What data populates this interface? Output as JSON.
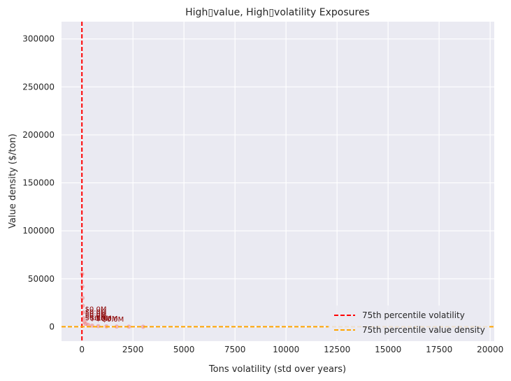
{
  "chart_data": {
    "type": "scatter",
    "title": "High▯value, High▯volatility Exposures",
    "xlabel": "Tons volatility (std over years)",
    "ylabel": "Value density ($/ton)",
    "xlim": [
      -1000,
      20200
    ],
    "ylim": [
      -15000,
      318000
    ],
    "xticks": [
      0,
      2500,
      5000,
      7500,
      10000,
      12500,
      15000,
      17500,
      20000
    ],
    "yticks": [
      0,
      50000,
      100000,
      150000,
      200000,
      250000,
      300000
    ],
    "grid": true,
    "legend_position": "lower-right",
    "reference_lines": [
      {
        "orientation": "vertical",
        "value": 0,
        "label": "75th percentile volatility",
        "color": "#ff0000",
        "style": "dashed"
      },
      {
        "orientation": "horizontal",
        "value": 0,
        "label": "75th percentile value density",
        "color": "#ffa500",
        "style": "dashed"
      }
    ],
    "points_color": "#f08080",
    "points": [
      {
        "x": 10,
        "y": 55000
      },
      {
        "x": 20,
        "y": 42000
      },
      {
        "x": 30,
        "y": 30000
      },
      {
        "x": 40,
        "y": 22000
      },
      {
        "x": 60,
        "y": 15000
      },
      {
        "x": 80,
        "y": 9000
      },
      {
        "x": 120,
        "y": 5000
      },
      {
        "x": 180,
        "y": 3000
      },
      {
        "x": 300,
        "y": 2000
      },
      {
        "x": 500,
        "y": 1200
      },
      {
        "x": 800,
        "y": 700
      },
      {
        "x": 1200,
        "y": 400
      },
      {
        "x": 1700,
        "y": 200
      },
      {
        "x": 2300,
        "y": 100
      },
      {
        "x": 3000,
        "y": 50
      }
    ],
    "annotations": [
      {
        "x": 150,
        "y": 16000,
        "text": "$0.0M"
      },
      {
        "x": 150,
        "y": 13000,
        "text": "$0.0M"
      },
      {
        "x": 150,
        "y": 11000,
        "text": "$0.0M"
      },
      {
        "x": 150,
        "y": 9000,
        "text": "$0.0M"
      },
      {
        "x": 150,
        "y": 7000,
        "text": "$0.0M"
      },
      {
        "x": 400,
        "y": 6500,
        "text": "$0.0M"
      },
      {
        "x": 700,
        "y": 6000,
        "text": "$0.0M"
      },
      {
        "x": 1000,
        "y": 5500,
        "text": "$0.0M"
      }
    ]
  }
}
